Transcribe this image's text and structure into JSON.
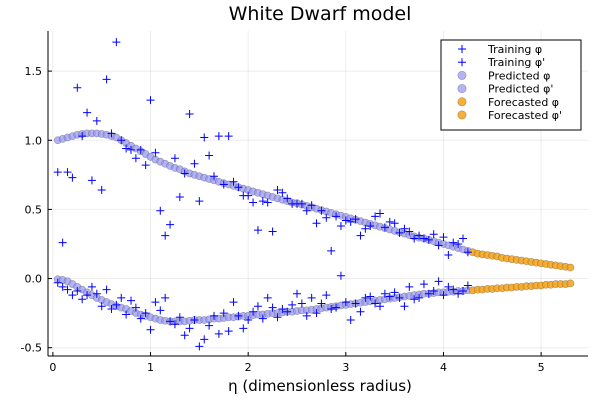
{
  "chart_data": {
    "type": "scatter",
    "title": "White Dwarf model",
    "xlabel": "η (dimensionless radius)",
    "ylabel": "",
    "xlim": [
      -0.05,
      5.48
    ],
    "ylim": [
      -0.56,
      1.79
    ],
    "xticks": [
      0,
      1,
      2,
      3,
      4,
      5
    ],
    "yticks": [
      -0.5,
      0.0,
      0.5,
      1.0,
      1.5
    ],
    "ytick_labels": [
      "-0.5",
      "0.0",
      "0.5",
      "1.0",
      "1.5"
    ],
    "grid": true,
    "legend_position": "top-right",
    "series": [
      {
        "name": "Training φ",
        "marker": "plus",
        "color": "#0000ff",
        "x": [
          0.05,
          0.1,
          0.15,
          0.2,
          0.25,
          0.3,
          0.35,
          0.4,
          0.45,
          0.5,
          0.55,
          0.6,
          0.65,
          0.7,
          0.75,
          0.8,
          0.85,
          0.9,
          0.95,
          1.0,
          1.05,
          1.1,
          1.15,
          1.2,
          1.25,
          1.3,
          1.35,
          1.4,
          1.45,
          1.5,
          1.55,
          1.6,
          1.65,
          1.7,
          1.75,
          1.8,
          1.85,
          1.9,
          1.95,
          2.0,
          2.05,
          2.1,
          2.15,
          2.2,
          2.25,
          2.3,
          2.35,
          2.4,
          2.45,
          2.5,
          2.55,
          2.6,
          2.65,
          2.7,
          2.75,
          2.8,
          2.85,
          2.9,
          2.95,
          3.0,
          3.05,
          3.1,
          3.15,
          3.2,
          3.25,
          3.3,
          3.35,
          3.4,
          3.45,
          3.5,
          3.55,
          3.6,
          3.65,
          3.7,
          3.75,
          3.8,
          3.85,
          3.9,
          3.95,
          4.0,
          4.05,
          4.1,
          4.15,
          4.2,
          4.25
        ],
        "y": [
          0.77,
          0.26,
          0.77,
          0.73,
          1.38,
          1.03,
          1.2,
          0.71,
          1.14,
          0.64,
          1.44,
          1.05,
          1.71,
          1.0,
          0.94,
          0.93,
          0.87,
          0.93,
          0.82,
          1.29,
          0.91,
          0.49,
          0.31,
          0.39,
          0.87,
          0.59,
          0.76,
          1.19,
          0.83,
          0.56,
          1.02,
          0.89,
          0.74,
          1.03,
          0.68,
          1.03,
          0.7,
          0.66,
          0.6,
          0.6,
          0.55,
          0.35,
          0.56,
          0.55,
          0.34,
          0.64,
          0.62,
          0.58,
          0.54,
          0.54,
          0.54,
          0.49,
          0.53,
          0.4,
          0.49,
          0.44,
          0.2,
          0.45,
          0.38,
          0.42,
          0.41,
          0.43,
          0.31,
          0.36,
          0.38,
          0.45,
          0.47,
          0.37,
          0.41,
          0.4,
          0.33,
          0.36,
          0.34,
          0.29,
          0.31,
          0.29,
          0.28,
          0.32,
          0.24,
          0.3,
          0.17,
          0.26,
          0.25,
          0.29,
          0.19
        ]
      },
      {
        "name": "Training φ'",
        "marker": "plus",
        "color": "#0000ff",
        "x": [
          0.05,
          0.1,
          0.15,
          0.2,
          0.25,
          0.3,
          0.35,
          0.4,
          0.45,
          0.5,
          0.55,
          0.6,
          0.65,
          0.7,
          0.75,
          0.8,
          0.85,
          0.9,
          0.95,
          1.0,
          1.05,
          1.1,
          1.15,
          1.2,
          1.25,
          1.3,
          1.35,
          1.4,
          1.45,
          1.5,
          1.55,
          1.6,
          1.65,
          1.7,
          1.75,
          1.8,
          1.85,
          1.9,
          1.95,
          2.0,
          2.05,
          2.1,
          2.15,
          2.2,
          2.25,
          2.3,
          2.35,
          2.4,
          2.45,
          2.5,
          2.55,
          2.6,
          2.65,
          2.7,
          2.75,
          2.8,
          2.85,
          2.9,
          2.95,
          3.0,
          3.05,
          3.1,
          3.15,
          3.2,
          3.25,
          3.3,
          3.35,
          3.4,
          3.45,
          3.5,
          3.55,
          3.6,
          3.65,
          3.7,
          3.75,
          3.8,
          3.85,
          3.9,
          3.95,
          4.0,
          4.05,
          4.1,
          4.15,
          4.2,
          4.25
        ],
        "y": [
          -0.03,
          -0.06,
          -0.08,
          -0.12,
          -0.09,
          -0.15,
          -0.12,
          -0.06,
          -0.11,
          -0.2,
          -0.08,
          -0.22,
          -0.19,
          -0.14,
          -0.26,
          -0.16,
          -0.21,
          -0.29,
          -0.25,
          -0.37,
          -0.17,
          -0.23,
          -0.14,
          -0.31,
          -0.33,
          -0.28,
          -0.41,
          -0.36,
          -0.3,
          -0.49,
          -0.44,
          -0.34,
          -0.27,
          -0.4,
          -0.25,
          -0.38,
          -0.17,
          -0.27,
          -0.36,
          -0.3,
          -0.24,
          -0.2,
          -0.29,
          -0.14,
          -0.21,
          -0.28,
          -0.22,
          -0.24,
          -0.19,
          -0.11,
          -0.18,
          -0.27,
          -0.14,
          -0.25,
          -0.18,
          -0.12,
          -0.22,
          -0.21,
          0.02,
          -0.17,
          -0.3,
          -0.18,
          -0.24,
          -0.14,
          -0.13,
          -0.18,
          -0.2,
          -0.11,
          -0.13,
          -0.1,
          -0.14,
          -0.2,
          -0.06,
          -0.15,
          -0.14,
          -0.04,
          -0.11,
          -0.09,
          -0.02,
          -0.12,
          -0.06,
          -0.08,
          -0.11,
          -0.09,
          -0.05
        ]
      },
      {
        "name": "Predicted φ",
        "marker": "circle",
        "color": "#9a9af2",
        "x": [
          0.05,
          0.1,
          0.15,
          0.2,
          0.25,
          0.3,
          0.35,
          0.4,
          0.45,
          0.5,
          0.55,
          0.6,
          0.65,
          0.7,
          0.75,
          0.8,
          0.85,
          0.9,
          0.95,
          1.0,
          1.05,
          1.1,
          1.15,
          1.2,
          1.25,
          1.3,
          1.35,
          1.4,
          1.45,
          1.5,
          1.55,
          1.6,
          1.65,
          1.7,
          1.75,
          1.8,
          1.85,
          1.9,
          1.95,
          2.0,
          2.05,
          2.1,
          2.15,
          2.2,
          2.25,
          2.3,
          2.35,
          2.4,
          2.45,
          2.5,
          2.55,
          2.6,
          2.65,
          2.7,
          2.75,
          2.8,
          2.85,
          2.9,
          2.95,
          3.0,
          3.05,
          3.1,
          3.15,
          3.2,
          3.25,
          3.3,
          3.35,
          3.4,
          3.45,
          3.5,
          3.55,
          3.6,
          3.65,
          3.7,
          3.75,
          3.8,
          3.85,
          3.9,
          3.95,
          4.0,
          4.05,
          4.1,
          4.15,
          4.2,
          4.25
        ],
        "y": [
          1.0,
          1.01,
          1.02,
          1.03,
          1.04,
          1.045,
          1.05,
          1.05,
          1.05,
          1.045,
          1.04,
          1.03,
          1.02,
          1.0,
          0.98,
          0.96,
          0.94,
          0.92,
          0.9,
          0.88,
          0.86,
          0.845,
          0.83,
          0.815,
          0.8,
          0.79,
          0.775,
          0.76,
          0.75,
          0.74,
          0.73,
          0.72,
          0.71,
          0.7,
          0.69,
          0.68,
          0.67,
          0.66,
          0.65,
          0.64,
          0.63,
          0.62,
          0.61,
          0.6,
          0.59,
          0.58,
          0.57,
          0.56,
          0.55,
          0.545,
          0.535,
          0.525,
          0.515,
          0.505,
          0.495,
          0.485,
          0.475,
          0.465,
          0.455,
          0.445,
          0.435,
          0.425,
          0.415,
          0.405,
          0.395,
          0.385,
          0.375,
          0.365,
          0.355,
          0.345,
          0.335,
          0.325,
          0.315,
          0.305,
          0.295,
          0.29,
          0.28,
          0.27,
          0.26,
          0.25,
          0.24,
          0.23,
          0.22,
          0.21,
          0.2
        ]
      },
      {
        "name": "Predicted φ'",
        "marker": "circle",
        "color": "#9a9af2",
        "x": [
          0.05,
          0.1,
          0.15,
          0.2,
          0.25,
          0.3,
          0.35,
          0.4,
          0.45,
          0.5,
          0.55,
          0.6,
          0.65,
          0.7,
          0.75,
          0.8,
          0.85,
          0.9,
          0.95,
          1.0,
          1.05,
          1.1,
          1.15,
          1.2,
          1.25,
          1.3,
          1.35,
          1.4,
          1.45,
          1.5,
          1.55,
          1.6,
          1.65,
          1.7,
          1.75,
          1.8,
          1.85,
          1.9,
          1.95,
          2.0,
          2.05,
          2.1,
          2.15,
          2.2,
          2.25,
          2.3,
          2.35,
          2.4,
          2.45,
          2.5,
          2.55,
          2.6,
          2.65,
          2.7,
          2.75,
          2.8,
          2.85,
          2.9,
          2.95,
          3.0,
          3.05,
          3.1,
          3.15,
          3.2,
          3.25,
          3.3,
          3.35,
          3.4,
          3.45,
          3.5,
          3.55,
          3.6,
          3.65,
          3.7,
          3.75,
          3.8,
          3.85,
          3.9,
          3.95,
          4.0,
          4.05,
          4.1,
          4.15,
          4.2,
          4.25
        ],
        "y": [
          -0.005,
          -0.01,
          -0.02,
          -0.04,
          -0.06,
          -0.08,
          -0.1,
          -0.12,
          -0.14,
          -0.155,
          -0.17,
          -0.185,
          -0.2,
          -0.21,
          -0.22,
          -0.235,
          -0.25,
          -0.26,
          -0.27,
          -0.28,
          -0.29,
          -0.3,
          -0.305,
          -0.31,
          -0.31,
          -0.31,
          -0.31,
          -0.305,
          -0.3,
          -0.3,
          -0.3,
          -0.295,
          -0.29,
          -0.29,
          -0.285,
          -0.28,
          -0.28,
          -0.275,
          -0.27,
          -0.27,
          -0.265,
          -0.26,
          -0.26,
          -0.255,
          -0.25,
          -0.25,
          -0.245,
          -0.24,
          -0.24,
          -0.235,
          -0.23,
          -0.23,
          -0.225,
          -0.22,
          -0.215,
          -0.21,
          -0.205,
          -0.2,
          -0.195,
          -0.19,
          -0.185,
          -0.18,
          -0.175,
          -0.17,
          -0.165,
          -0.16,
          -0.155,
          -0.15,
          -0.145,
          -0.14,
          -0.135,
          -0.13,
          -0.125,
          -0.12,
          -0.115,
          -0.11,
          -0.11,
          -0.105,
          -0.1,
          -0.1,
          -0.095,
          -0.095,
          -0.09,
          -0.09,
          -0.085
        ]
      },
      {
        "name": "Forecasted φ",
        "marker": "circle",
        "color": "#f5a623",
        "x": [
          4.3,
          4.35,
          4.4,
          4.45,
          4.5,
          4.55,
          4.6,
          4.65,
          4.7,
          4.75,
          4.8,
          4.85,
          4.9,
          4.95,
          5.0,
          5.05,
          5.1,
          5.15,
          5.2,
          5.25,
          5.3
        ],
        "y": [
          0.19,
          0.18,
          0.175,
          0.17,
          0.165,
          0.16,
          0.15,
          0.145,
          0.14,
          0.135,
          0.13,
          0.125,
          0.12,
          0.115,
          0.11,
          0.105,
          0.1,
          0.095,
          0.09,
          0.085,
          0.08
        ]
      },
      {
        "name": "Forecasted φ'",
        "marker": "circle",
        "color": "#f5a623",
        "x": [
          4.3,
          4.35,
          4.4,
          4.45,
          4.5,
          4.55,
          4.6,
          4.65,
          4.7,
          4.75,
          4.8,
          4.85,
          4.9,
          4.95,
          5.0,
          5.05,
          5.1,
          5.15,
          5.2,
          5.25,
          5.3
        ],
        "y": [
          -0.085,
          -0.08,
          -0.08,
          -0.075,
          -0.075,
          -0.07,
          -0.07,
          -0.065,
          -0.065,
          -0.06,
          -0.06,
          -0.055,
          -0.055,
          -0.05,
          -0.05,
          -0.045,
          -0.045,
          -0.04,
          -0.04,
          -0.04,
          -0.035
        ]
      }
    ]
  }
}
